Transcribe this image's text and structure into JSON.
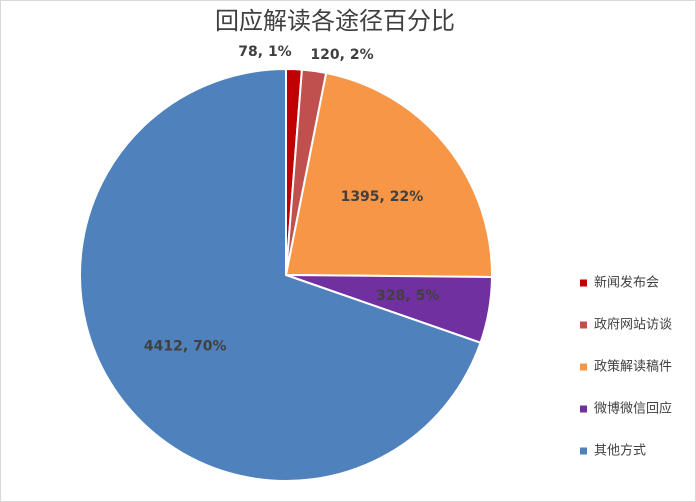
{
  "chart_data": {
    "type": "pie",
    "title": "回应解读各途径百分比",
    "categories": [
      "新闻发布会",
      "政府网站访谈",
      "政策解读稿件",
      "微博微信回应",
      "其他方式"
    ],
    "values": [
      78,
      120,
      1395,
      328,
      4412
    ],
    "value_labels": [
      "78, 1%",
      "120, 2%",
      "1395, 22%",
      "328, 5%",
      "4412, 70%"
    ],
    "colors": [
      "#c00000",
      "#c0504d",
      "#f79646",
      "#7030a0",
      "#4f81bd"
    ],
    "legend": "right"
  }
}
